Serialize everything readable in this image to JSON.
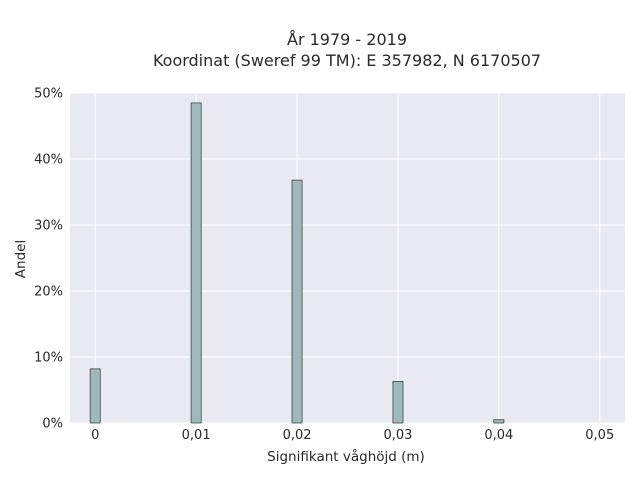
{
  "chart_data": {
    "type": "bar",
    "title_line1": "År 1979 - 2019",
    "title_line2": "Koordinat (Sweref 99 TM): E 357982, N 6170507",
    "xlabel": "Signifikant våghöjd (m)",
    "ylabel": "Andel",
    "xlim": [
      -0.0025,
      0.0525
    ],
    "ylim": [
      0,
      0.5
    ],
    "x_ticks": [
      0,
      0.01,
      0.02,
      0.03,
      0.04,
      0.05
    ],
    "x_tick_labels": [
      "0",
      "0,01",
      "0,02",
      "0,03",
      "0,04",
      "0,05"
    ],
    "y_ticks": [
      0,
      0.1,
      0.2,
      0.3,
      0.4,
      0.5
    ],
    "y_tick_labels": [
      "0%",
      "10%",
      "20%",
      "30%",
      "40%",
      "50%"
    ],
    "bin_width": 0.001,
    "bars": [
      {
        "x": 0.0,
        "value": 0.082
      },
      {
        "x": 0.01,
        "value": 0.485
      },
      {
        "x": 0.02,
        "value": 0.368
      },
      {
        "x": 0.03,
        "value": 0.063
      },
      {
        "x": 0.04,
        "value": 0.005
      }
    ],
    "grid": true,
    "colors": {
      "bar_fill": "#9fb9ba",
      "bar_stroke": "#3c4a4a",
      "plot_background": "#e9e9f1",
      "grid": "#ffffff"
    }
  }
}
